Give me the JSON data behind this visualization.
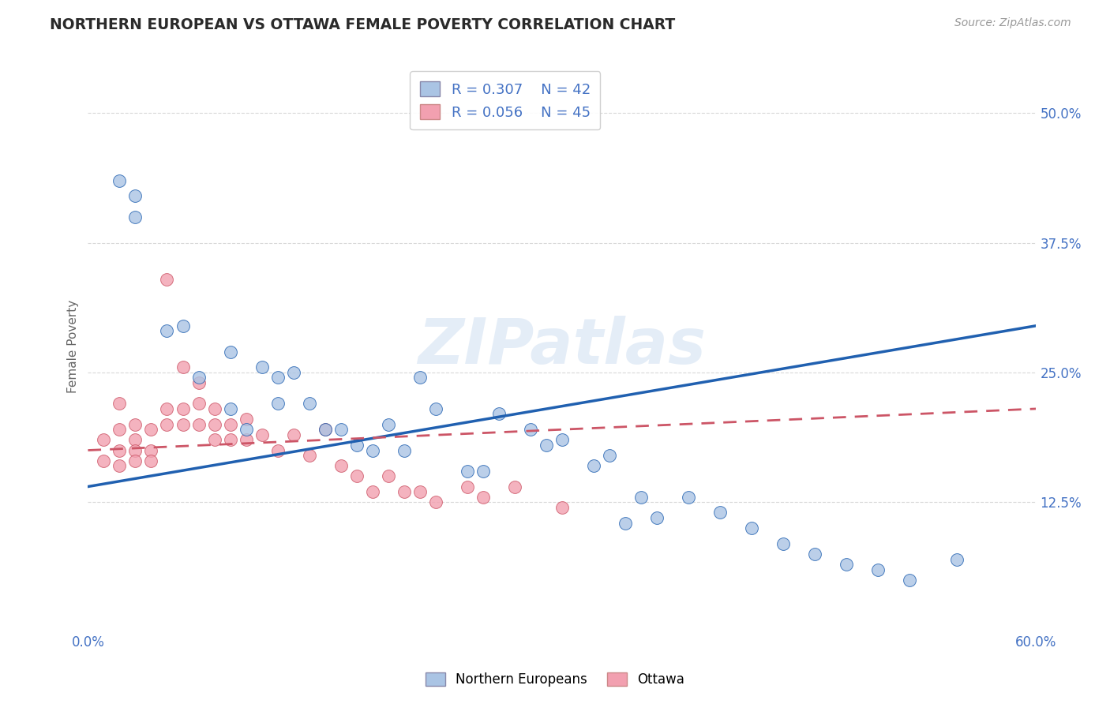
{
  "title": "NORTHERN EUROPEAN VS OTTAWA FEMALE POVERTY CORRELATION CHART",
  "source": "Source: ZipAtlas.com",
  "ylabel": "Female Poverty",
  "xlim": [
    0.0,
    0.6
  ],
  "ylim": [
    0.0,
    0.55
  ],
  "ytick_positions": [
    0.125,
    0.25,
    0.375,
    0.5
  ],
  "ytick_labels": [
    "12.5%",
    "25.0%",
    "37.5%",
    "50.0%"
  ],
  "grid_color": "#d8d8d8",
  "background_color": "#ffffff",
  "watermark": "ZIPatlas",
  "ne_color": "#aac4e4",
  "ot_color": "#f2a0b0",
  "ne_line_color": "#2060b0",
  "ot_line_color": "#cc5566",
  "tick_color": "#4472c4",
  "axis_label_color": "#666666",
  "ne_scatter_x": [
    0.02,
    0.03,
    0.03,
    0.05,
    0.06,
    0.07,
    0.09,
    0.09,
    0.1,
    0.11,
    0.12,
    0.12,
    0.13,
    0.14,
    0.15,
    0.16,
    0.17,
    0.18,
    0.19,
    0.2,
    0.21,
    0.22,
    0.24,
    0.25,
    0.26,
    0.28,
    0.29,
    0.3,
    0.32,
    0.33,
    0.34,
    0.35,
    0.36,
    0.38,
    0.4,
    0.42,
    0.44,
    0.46,
    0.48,
    0.5,
    0.52,
    0.55
  ],
  "ne_scatter_y": [
    0.435,
    0.42,
    0.4,
    0.29,
    0.295,
    0.245,
    0.27,
    0.215,
    0.195,
    0.255,
    0.245,
    0.22,
    0.25,
    0.22,
    0.195,
    0.195,
    0.18,
    0.175,
    0.2,
    0.175,
    0.245,
    0.215,
    0.155,
    0.155,
    0.21,
    0.195,
    0.18,
    0.185,
    0.16,
    0.17,
    0.105,
    0.13,
    0.11,
    0.13,
    0.115,
    0.1,
    0.085,
    0.075,
    0.065,
    0.06,
    0.05,
    0.07
  ],
  "ot_scatter_x": [
    0.01,
    0.01,
    0.02,
    0.02,
    0.02,
    0.02,
    0.03,
    0.03,
    0.03,
    0.03,
    0.04,
    0.04,
    0.04,
    0.05,
    0.05,
    0.05,
    0.06,
    0.06,
    0.06,
    0.07,
    0.07,
    0.07,
    0.08,
    0.08,
    0.08,
    0.09,
    0.09,
    0.1,
    0.1,
    0.11,
    0.12,
    0.13,
    0.14,
    0.15,
    0.16,
    0.17,
    0.18,
    0.19,
    0.2,
    0.21,
    0.22,
    0.24,
    0.25,
    0.27,
    0.3
  ],
  "ot_scatter_y": [
    0.185,
    0.165,
    0.22,
    0.195,
    0.175,
    0.16,
    0.2,
    0.185,
    0.175,
    0.165,
    0.195,
    0.175,
    0.165,
    0.34,
    0.215,
    0.2,
    0.255,
    0.215,
    0.2,
    0.24,
    0.22,
    0.2,
    0.215,
    0.2,
    0.185,
    0.2,
    0.185,
    0.205,
    0.185,
    0.19,
    0.175,
    0.19,
    0.17,
    0.195,
    0.16,
    0.15,
    0.135,
    0.15,
    0.135,
    0.135,
    0.125,
    0.14,
    0.13,
    0.14,
    0.12
  ],
  "ne_line_x0": 0.0,
  "ne_line_y0": 0.14,
  "ne_line_x1": 0.6,
  "ne_line_y1": 0.295,
  "ot_line_x0": 0.0,
  "ot_line_y0": 0.175,
  "ot_line_x1": 0.6,
  "ot_line_y1": 0.215
}
